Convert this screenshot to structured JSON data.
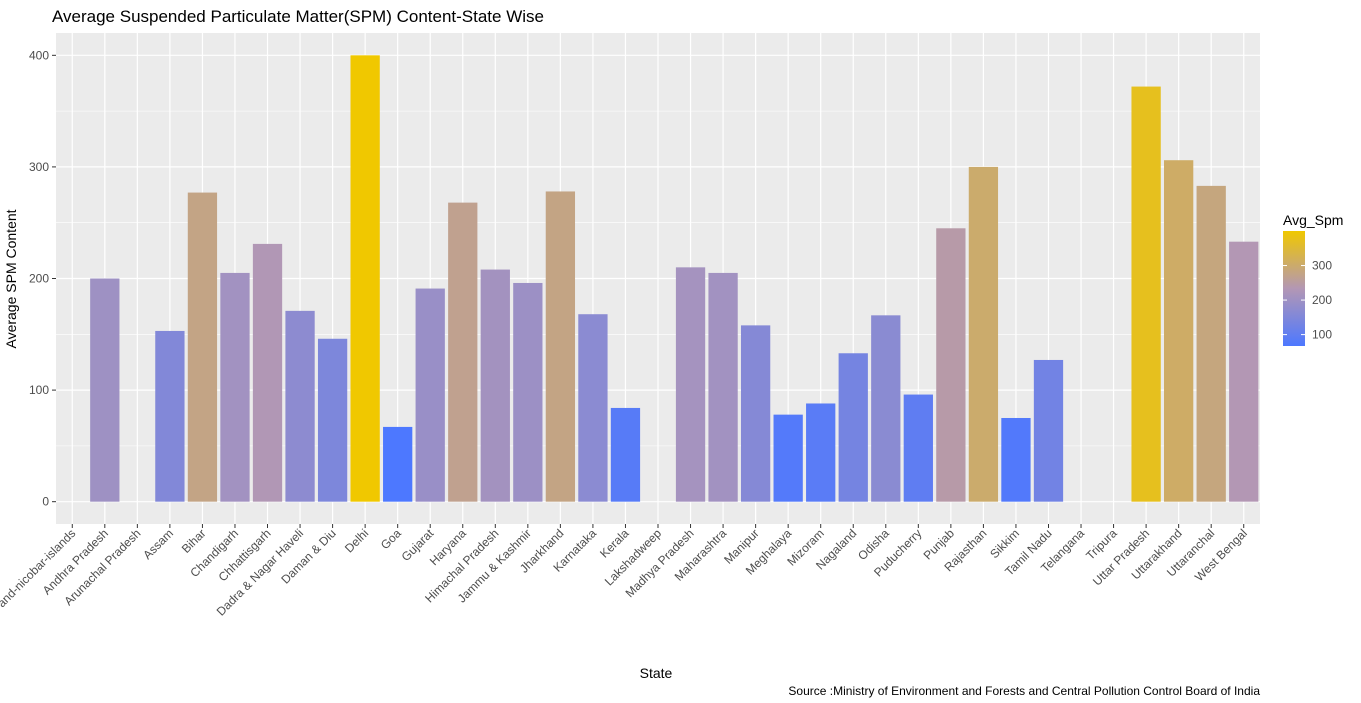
{
  "chart_data": {
    "type": "bar",
    "title": "Average Suspended Particulate Matter(SPM) Content-State Wise",
    "xlabel": "State",
    "ylabel": "Average SPM Content",
    "caption": "Source :Ministry of Environment and Forests and Central Pollution Control Board of India",
    "ylim": [
      -20,
      420
    ],
    "yticks": [
      0,
      100,
      200,
      300,
      400
    ],
    "grid": true,
    "legend": {
      "title": "Avg_Spm",
      "position": "right",
      "min": 67,
      "max": 400,
      "ticks": [
        100,
        200,
        300
      ],
      "low_color": "#4d78ff",
      "high_color": "#f0c800"
    },
    "categories": [
      "andaman-and-nicobar-islands",
      "Andhra Pradesh",
      "Arunachal Pradesh",
      "Assam",
      "Bihar",
      "Chandigarh",
      "Chhattisgarh",
      "Dadra & Nagar Haveli",
      "Daman & Diu",
      "Delhi",
      "Goa",
      "Gujarat",
      "Haryana",
      "Himachal Pradesh",
      "Jammu & Kashmir",
      "Jharkhand",
      "Karnataka",
      "Kerala",
      "Lakshadweep",
      "Madhya Pradesh",
      "Maharashtra",
      "Manipur",
      "Meghalaya",
      "Mizoram",
      "Nagaland",
      "Odisha",
      "Puducherry",
      "Punjab",
      "Rajasthan",
      "Sikkim",
      "Tamil Nadu",
      "Telangana",
      "Tripura",
      "Uttar Pradesh",
      "Uttarakhand",
      "Uttaranchal",
      "West Bengal"
    ],
    "values": [
      null,
      200,
      null,
      153,
      277,
      205,
      231,
      171,
      146,
      400,
      67,
      191,
      268,
      208,
      196,
      278,
      168,
      84,
      null,
      210,
      205,
      158,
      78,
      88,
      133,
      167,
      96,
      245,
      300,
      75,
      127,
      null,
      null,
      372,
      306,
      283,
      233
    ]
  }
}
